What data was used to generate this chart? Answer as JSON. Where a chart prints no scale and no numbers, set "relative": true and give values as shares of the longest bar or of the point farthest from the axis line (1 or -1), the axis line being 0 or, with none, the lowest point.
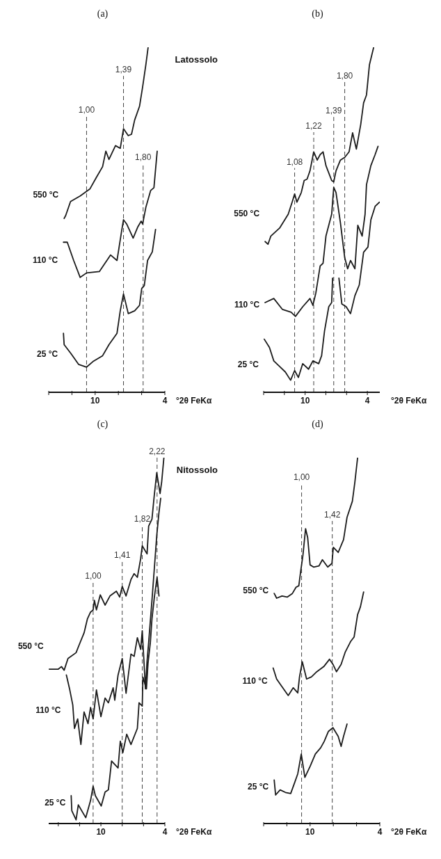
{
  "chart_data": [
    {
      "type": "line",
      "title": "(a)",
      "xlabel": "°2θ FeKα",
      "annotations": [
        "Latossolo",
        {
          "text": "1,00",
          "x": 10.74,
          "y": 0.8
        },
        {
          "text": "1,39",
          "x": 7.56,
          "y": 0.917
        },
        {
          "text": "1,80",
          "x": 5.87,
          "y": 0.663
        }
      ],
      "relative": true,
      "xlim": [
        14,
        4
      ],
      "xticks": [
        {
          "value": 14,
          "label": null
        },
        {
          "value": 12,
          "label": null
        },
        {
          "value": 10,
          "label": "10"
        },
        {
          "value": 8,
          "label": null
        },
        {
          "value": 6,
          "label": null
        },
        {
          "value": 4,
          "label": "4"
        }
      ],
      "ref_lines": [
        {
          "axis": "x",
          "value": 10.74
        },
        {
          "axis": "x",
          "value": 7.56
        },
        {
          "axis": "x",
          "value": 5.87
        }
      ],
      "series": [
        {
          "name": "550 °C",
          "color": "#1a1a1a",
          "x": [
            12.67,
            12.54,
            12.12,
            11.29,
            10.46,
            9.91,
            9.36,
            9.08,
            8.81,
            8.25,
            7.84,
            7.56,
            7.15,
            6.87,
            6.6,
            6.18,
            5.91,
            5.63,
            5.44
          ],
          "values": [
            0.504,
            0.512,
            0.553,
            0.569,
            0.589,
            0.622,
            0.654,
            0.699,
            0.675,
            0.715,
            0.707,
            0.764,
            0.744,
            0.748,
            0.789,
            0.829,
            0.886,
            0.951,
            1
          ]
        },
        {
          "name": "110 °C",
          "color": "#1a1a1a",
          "x": [
            12.73,
            12.4,
            11.85,
            11.29,
            10.74,
            9.64,
            8.67,
            8.12,
            7.7,
            7.56,
            7.29,
            6.73,
            6.32,
            6.04,
            5.91,
            5.63,
            5.22,
            4.94,
            4.66
          ],
          "values": [
            0.435,
            0.435,
            0.382,
            0.333,
            0.346,
            0.35,
            0.398,
            0.382,
            0.472,
            0.5,
            0.488,
            0.447,
            0.48,
            0.496,
            0.488,
            0.537,
            0.585,
            0.593,
            0.699
          ]
        },
        {
          "name": "25 °C",
          "color": "#1a1a1a",
          "x": [
            12.73,
            12.67,
            12.12,
            11.43,
            10.74,
            10.19,
            9.36,
            8.81,
            8.12,
            7.84,
            7.56,
            7.15,
            6.6,
            6.18,
            5.99,
            5.77,
            5.49,
            5.08,
            4.8
          ],
          "values": [
            0.171,
            0.138,
            0.114,
            0.081,
            0.073,
            0.089,
            0.106,
            0.138,
            0.171,
            0.236,
            0.285,
            0.228,
            0.236,
            0.252,
            0.301,
            0.309,
            0.382,
            0.407,
            0.472
          ]
        }
      ]
    },
    {
      "type": "line",
      "title": "(b)",
      "xlabel": "°2θ FeKα",
      "relative": true,
      "xlim": [
        14,
        2.8
      ],
      "xticks": [
        {
          "value": 14,
          "label": null
        },
        {
          "value": 12,
          "label": null
        },
        {
          "value": 10,
          "label": "10"
        },
        {
          "value": 8,
          "label": null
        },
        {
          "value": 6,
          "label": null
        },
        {
          "value": 4,
          "label": "4"
        }
      ],
      "ref_lines": [
        {
          "axis": "x",
          "value": 11.01
        },
        {
          "axis": "x",
          "value": 9.17
        },
        {
          "axis": "x",
          "value": 7.24
        },
        {
          "axis": "x",
          "value": 6.18
        }
      ],
      "annotations": [
        {
          "text": "1,08",
          "x": 11.01,
          "y": 0.65
        },
        {
          "text": "1,22",
          "x": 9.17,
          "y": 0.754
        },
        {
          "text": "1,39",
          "x": 7.24,
          "y": 0.798
        },
        {
          "text": "1,80",
          "x": 6.18,
          "y": 0.9
        }
      ],
      "series": [
        {
          "name": "550 °C",
          "color": "#1a1a1a",
          "x": [
            13.86,
            13.58,
            13.3,
            12.46,
            11.63,
            11.21,
            11.01,
            10.79,
            10.37,
            10.09,
            9.81,
            9.53,
            9.17,
            8.83,
            8.55,
            8.27,
            7.99,
            7.44,
            7.24,
            7.02,
            6.6,
            6.18,
            5.76,
            5.42,
            5.06,
            4.64,
            4.36,
            4.08,
            3.8,
            3.39
          ],
          "values": [
            0.437,
            0.429,
            0.453,
            0.476,
            0.516,
            0.555,
            0.575,
            0.551,
            0.579,
            0.614,
            0.618,
            0.642,
            0.697,
            0.673,
            0.689,
            0.697,
            0.657,
            0.614,
            0.61,
            0.642,
            0.673,
            0.681,
            0.697,
            0.752,
            0.705,
            0.776,
            0.839,
            0.862,
            0.949,
            1
          ]
        },
        {
          "name": "110 °C",
          "color": "#1a1a1a",
          "x": [
            13.86,
            13.02,
            12.18,
            11.35,
            10.93,
            10.23,
            9.53,
            9.25,
            8.97,
            8.55,
            8.27,
            7.99,
            7.44,
            7.24,
            7.02,
            6.6,
            6.18,
            5.9,
            5.62,
            5.2,
            4.92,
            4.5,
            4.22,
            4.08,
            3.66,
            3.25,
            2.97
          ],
          "values": [
            0.26,
            0.272,
            0.24,
            0.232,
            0.22,
            0.248,
            0.272,
            0.252,
            0.287,
            0.366,
            0.374,
            0.453,
            0.516,
            0.594,
            0.579,
            0.492,
            0.39,
            0.358,
            0.382,
            0.358,
            0.484,
            0.453,
            0.516,
            0.602,
            0.657,
            0.689,
            0.713
          ]
        },
        {
          "name": "25 °C",
          "color": "#1a1a1a",
          "x": [
            13.94,
            13.44,
            13.02,
            12.46,
            11.91,
            11.4,
            11.01,
            10.65,
            10.23,
            9.67,
            9.25,
            8.69,
            8.41,
            8.13,
            7.72,
            7.44,
            7.35,
            7.04,
            6.74,
            6.46,
            6.04,
            5.62,
            5.2,
            4.78,
            4.36,
            3.94,
            3.66,
            3.25,
            2.83
          ],
          "values": [
            0.154,
            0.13,
            0.091,
            0.075,
            0.059,
            0.035,
            0.063,
            0.043,
            0.083,
            0.067,
            0.091,
            0.083,
            0.106,
            0.177,
            0.248,
            0.26,
            0.331,
            null,
            0.331,
            0.256,
            0.248,
            0.228,
            0.28,
            0.311,
            0.406,
            0.421,
            0.5,
            0.539,
            0.551
          ]
        }
      ]
    },
    {
      "type": "line",
      "title": "(c)",
      "xlabel": "°2θ FeKα",
      "annotations": [
        "Nitossolo",
        {
          "text": "1,00",
          "x": 10.73,
          "y": 0.66
        },
        {
          "text": "1,41",
          "x": 8.0,
          "y": 0.717
        },
        {
          "text": "1,82",
          "x": 6.12,
          "y": 0.816
        },
        {
          "text": "2,22",
          "x": 4.73,
          "y": 1.0
        }
      ],
      "relative": true,
      "xlim": [
        14.9,
        4
      ],
      "xticks": [
        {
          "value": 14,
          "label": null
        },
        {
          "value": 12,
          "label": null
        },
        {
          "value": 10,
          "label": "10"
        },
        {
          "value": 8,
          "label": null
        },
        {
          "value": 6,
          "label": null
        },
        {
          "value": 4,
          "label": "4"
        }
      ],
      "ref_lines": [
        {
          "axis": "x",
          "value": 10.73
        },
        {
          "axis": "x",
          "value": 8.0
        },
        {
          "axis": "x",
          "value": 6.12
        },
        {
          "axis": "x",
          "value": 4.73
        }
      ],
      "series": [
        {
          "name": "550 °C",
          "color": "#1a1a1a",
          "x": [
            14.85,
            14,
            13.7,
            13.45,
            13.09,
            12.33,
            12.03,
            11.58,
            11.27,
            10.97,
            10.73,
            10.61,
            10.42,
            10.06,
            9.61,
            9.15,
            8.55,
            8.24,
            8.0,
            7.64,
            7.18,
            6.88,
            6.58,
            6.27,
            6.12,
            5.67,
            5.52,
            5.21,
            5.0,
            4.76,
            4.45,
            4.3,
            4.09
          ],
          "values": [
            0.422,
            0.422,
            0.429,
            0.419,
            0.451,
            0.467,
            0.489,
            0.521,
            0.559,
            0.578,
            0.584,
            0.61,
            0.584,
            0.625,
            0.597,
            0.622,
            0.635,
            0.619,
            0.648,
            0.622,
            0.667,
            0.683,
            0.673,
            0.724,
            0.759,
            0.737,
            0.813,
            0.832,
            0.895,
            0.959,
            0.902,
            0.933,
            1
          ]
        },
        {
          "name": "110 °C",
          "color": "#1a1a1a",
          "x": [
            13.24,
            12.94,
            12.64,
            12.48,
            12.18,
            11.88,
            11.58,
            11.21,
            10.97,
            10.73,
            10.42,
            10.0,
            9.61,
            9.3,
            8.85,
            8.7,
            8.39,
            8.0,
            7.64,
            7.18,
            6.88,
            6.58,
            6.27,
            6.12,
            5.82,
            5.67,
            5.52,
            5.21,
            5.0,
            4.76,
            4.55,
            4.39
          ],
          "values": [
            0.406,
            0.368,
            0.324,
            0.26,
            0.286,
            0.216,
            0.305,
            0.273,
            0.317,
            0.286,
            0.365,
            0.292,
            0.343,
            0.33,
            0.371,
            0.337,
            0.406,
            0.451,
            0.356,
            0.463,
            0.457,
            0.508,
            0.476,
            0.527,
            0.368,
            0.444,
            0.495,
            0.61,
            0.692,
            0.787,
            0.851,
            0.889
          ]
        },
        {
          "name": "25 °C",
          "color": "#1a1a1a",
          "x": [
            12.79,
            12.73,
            12.33,
            12.12,
            11.42,
            10.97,
            10.73,
            10.52,
            9.97,
            9.61,
            9.3,
            9.0,
            8.39,
            8.18,
            7.94,
            7.58,
            7.18,
            6.58,
            6.42,
            6.12,
            6.06,
            5.73,
            5.58,
            5.36,
            5.21,
            4.97,
            4.73,
            4.55
          ],
          "values": [
            0.076,
            0.035,
            0.01,
            0.051,
            0.016,
            0.063,
            0.102,
            0.076,
            0.048,
            0.086,
            0.092,
            0.171,
            0.152,
            0.225,
            0.194,
            0.244,
            0.216,
            0.26,
            0.33,
            0.321,
            0.4,
            0.368,
            0.438,
            0.495,
            0.559,
            0.622,
            0.673,
            0.622
          ]
        }
      ]
    },
    {
      "type": "line",
      "title": "(d)",
      "xlabel": "°2θ FeKα",
      "relative": true,
      "xlim": [
        14,
        4
      ],
      "xticks": [
        {
          "value": 14,
          "label": null
        },
        {
          "value": 12,
          "label": null
        },
        {
          "value": 10,
          "label": "10"
        },
        {
          "value": 8,
          "label": null
        },
        {
          "value": 6,
          "label": null
        },
        {
          "value": 4,
          "label": "4"
        }
      ],
      "ref_lines": [
        {
          "axis": "x",
          "value": 10.73
        },
        {
          "axis": "x",
          "value": 8.09
        }
      ],
      "annotations": [
        {
          "text": "1,00",
          "x": 10.73,
          "y": 0.929
        },
        {
          "text": "1,42",
          "x": 8.09,
          "y": 0.827
        }
      ],
      "series": [
        {
          "name": "550 °C",
          "color": "#1a1a1a",
          "x": [
            13.09,
            12.88,
            12.42,
            11.97,
            11.52,
            11.21,
            10.97,
            10.82,
            10.61,
            10.39,
            10.21,
            10.0,
            9.7,
            9.24,
            8.94,
            8.48,
            8.12,
            8.0,
            7.58,
            7.12,
            6.82,
            6.36,
            6.15,
            5.91
          ],
          "values": [
            0.629,
            0.616,
            0.622,
            0.619,
            0.629,
            0.646,
            0.65,
            0.687,
            0.735,
            0.806,
            0.782,
            0.707,
            0.701,
            0.704,
            0.721,
            0.701,
            0.711,
            0.755,
            0.741,
            0.776,
            0.837,
            0.881,
            0.932,
            1
          ]
        },
        {
          "name": "110 °C",
          "color": "#1a1a1a",
          "x": [
            13.18,
            12.88,
            12.42,
            11.88,
            11.45,
            11.06,
            10.91,
            10.67,
            10.3,
            9.88,
            9.42,
            8.82,
            8.33,
            8.03,
            7.73,
            7.33,
            6.97,
            6.52,
            6.21,
            5.91,
            5.67,
            5.39
          ],
          "values": [
            0.425,
            0.395,
            0.374,
            0.35,
            0.371,
            0.357,
            0.401,
            0.442,
            0.395,
            0.401,
            0.415,
            0.429,
            0.449,
            0.435,
            0.415,
            0.435,
            0.469,
            0.497,
            0.51,
            0.571,
            0.592,
            0.633
          ]
        },
        {
          "name": "25 °C",
          "color": "#1a1a1a",
          "x": [
            13.09,
            12.97,
            12.58,
            12.12,
            11.67,
            11.36,
            11.06,
            10.76,
            10.45,
            10.0,
            9.55,
            9.09,
            8.79,
            8.42,
            8.03,
            7.58,
            7.33,
            7.12,
            6.82
          ],
          "values": [
            0.119,
            0.078,
            0.092,
            0.085,
            0.082,
            0.109,
            0.136,
            0.19,
            0.126,
            0.156,
            0.19,
            0.207,
            0.224,
            0.252,
            0.262,
            0.238,
            0.211,
            0.238,
            0.272
          ]
        }
      ]
    }
  ]
}
